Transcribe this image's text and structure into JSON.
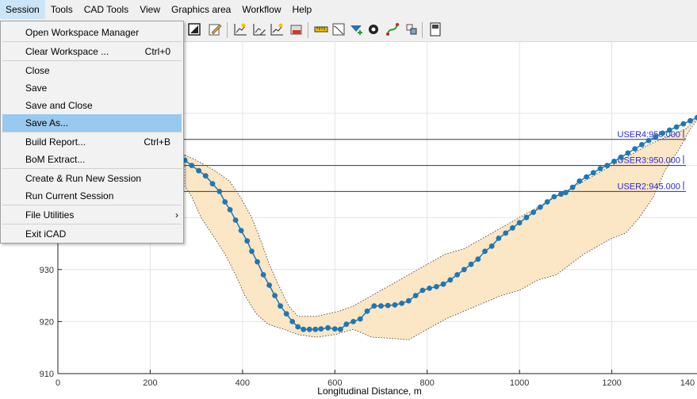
{
  "menubar": {
    "items": [
      "Session",
      "Tools",
      "CAD Tools",
      "View",
      "Graphics area",
      "Workflow",
      "Help"
    ]
  },
  "session_menu": {
    "items": [
      {
        "label": "Open Workspace Manager",
        "shortcut": ""
      },
      {
        "label": "Clear Workspace ...",
        "shortcut": "Ctrl+0"
      },
      {
        "label": "Close",
        "shortcut": ""
      },
      {
        "label": "Save",
        "shortcut": ""
      },
      {
        "label": "Save and Close",
        "shortcut": ""
      },
      {
        "label": "Save As...",
        "shortcut": "",
        "highlighted": true
      },
      {
        "label": "Build Report...",
        "shortcut": "Ctrl+B"
      },
      {
        "label": "BoM Extract...",
        "shortcut": ""
      },
      {
        "label": "Create & Run New Session",
        "shortcut": ""
      },
      {
        "label": "Run Current Session",
        "shortcut": ""
      },
      {
        "label": "File Utilities",
        "shortcut": "",
        "submenu": true
      },
      {
        "label": "Exit iCAD",
        "shortcut": ""
      }
    ]
  },
  "toolbar": {
    "icons": [
      "select-all-icon",
      "edit-icon",
      "chart-star-icon",
      "chart-edit-icon",
      "chart-star2-icon",
      "chart-dxf-icon",
      "ruler-icon",
      "profile-icon",
      "add-layer-icon",
      "settings-gear-icon",
      "spline-icon",
      "transform-icon",
      "properties-icon"
    ]
  },
  "chart_data": {
    "type": "line",
    "xlabel": "Longitudinal Distance, m",
    "ylabel": "",
    "xlim": [
      0,
      1400
    ],
    "ylim": [
      910,
      960
    ],
    "x_ticks": [
      "0",
      "200",
      "400",
      "600",
      "800",
      "1000",
      "1200",
      "140"
    ],
    "y_ticks": [
      "930",
      "920",
      "910"
    ],
    "grid": true,
    "reference_lines": [
      {
        "label": "USER4:955.000",
        "y": 955
      },
      {
        "label": "USER3:950.000",
        "y": 950
      },
      {
        "label": "USER2:945.000",
        "y": 945
      }
    ],
    "series": [
      {
        "color": "#1f77b4",
        "x": [
          275,
          290,
          305,
          320,
          335,
          350,
          362,
          373,
          385,
          397,
          410,
          420,
          432,
          445,
          458,
          470,
          482,
          495,
          508,
          520,
          532,
          545,
          558,
          570,
          585,
          600,
          612,
          625,
          640,
          655,
          670,
          685,
          700,
          715,
          730,
          745,
          760,
          775,
          790,
          805,
          820,
          835,
          850,
          865,
          880,
          895,
          910,
          925,
          940,
          955,
          970,
          985,
          1000,
          1015,
          1030,
          1045,
          1060,
          1075,
          1090,
          1100,
          1115,
          1130,
          1145,
          1160,
          1175,
          1190,
          1205,
          1220,
          1235,
          1250,
          1265,
          1280,
          1295,
          1310,
          1325,
          1340,
          1355,
          1370,
          1385,
          1396
        ],
        "y": [
          951,
          950,
          949,
          948,
          946.5,
          945,
          943,
          941.5,
          939.5,
          937.5,
          935.5,
          933.5,
          931.5,
          929,
          927,
          925,
          923,
          921.5,
          920,
          919,
          918.5,
          918.5,
          918.5,
          918.6,
          918.8,
          918.6,
          918.5,
          919.5,
          920,
          920.5,
          922,
          923,
          923,
          923.1,
          923.2,
          923.5,
          924,
          925,
          926,
          926.4,
          926.7,
          927.2,
          928,
          929,
          930,
          931,
          932,
          933.5,
          934.5,
          936,
          937,
          938,
          939,
          940,
          941,
          942,
          943,
          944,
          944.5,
          944.8,
          945.8,
          947,
          947.8,
          948.6,
          949.4,
          950,
          950.8,
          951.6,
          952.4,
          953.2,
          954,
          954.8,
          955.5,
          956.2,
          956.8,
          957.4,
          958,
          958.6,
          959.2,
          960
        ]
      }
    ],
    "band": {
      "color": "#fbe6c5",
      "upper": [
        [
          275,
          952
        ],
        [
          300,
          951
        ],
        [
          340,
          949
        ],
        [
          372,
          947
        ],
        [
          395,
          944
        ],
        [
          420,
          940
        ],
        [
          442,
          935
        ],
        [
          458,
          931
        ],
        [
          478,
          927
        ],
        [
          500,
          923
        ],
        [
          520,
          921
        ],
        [
          560,
          921
        ],
        [
          610,
          922
        ],
        [
          640,
          923
        ],
        [
          680,
          925
        ],
        [
          720,
          927
        ],
        [
          760,
          929
        ],
        [
          800,
          931
        ],
        [
          840,
          933
        ],
        [
          880,
          934
        ],
        [
          920,
          936
        ],
        [
          960,
          938
        ],
        [
          1000,
          940
        ],
        [
          1040,
          942
        ],
        [
          1080,
          944
        ],
        [
          1120,
          946
        ],
        [
          1160,
          948
        ],
        [
          1200,
          950
        ],
        [
          1240,
          952
        ],
        [
          1280,
          954
        ],
        [
          1320,
          955.5
        ],
        [
          1360,
          957
        ],
        [
          1396,
          960
        ]
      ],
      "lower": [
        [
          1396,
          960
        ],
        [
          1370,
          957
        ],
        [
          1345,
          953
        ],
        [
          1315,
          949
        ],
        [
          1290,
          944
        ],
        [
          1260,
          940
        ],
        [
          1230,
          937
        ],
        [
          1200,
          936
        ],
        [
          1170,
          934.5
        ],
        [
          1140,
          933
        ],
        [
          1110,
          931
        ],
        [
          1080,
          929
        ],
        [
          1040,
          928
        ],
        [
          1000,
          926
        ],
        [
          960,
          925
        ],
        [
          920,
          923.5
        ],
        [
          880,
          922
        ],
        [
          840,
          920.5
        ],
        [
          800,
          918.5
        ],
        [
          760,
          916.5
        ],
        [
          720,
          916.8
        ],
        [
          680,
          917
        ],
        [
          640,
          918.5
        ],
        [
          600,
          917.5
        ],
        [
          560,
          917
        ],
        [
          520,
          917.5
        ],
        [
          490,
          918.5
        ],
        [
          455,
          919.5
        ],
        [
          430,
          921.5
        ],
        [
          405,
          925
        ],
        [
          385,
          929
        ],
        [
          362,
          933
        ],
        [
          340,
          936
        ],
        [
          310,
          940
        ],
        [
          290,
          944
        ],
        [
          275,
          946
        ]
      ]
    }
  }
}
